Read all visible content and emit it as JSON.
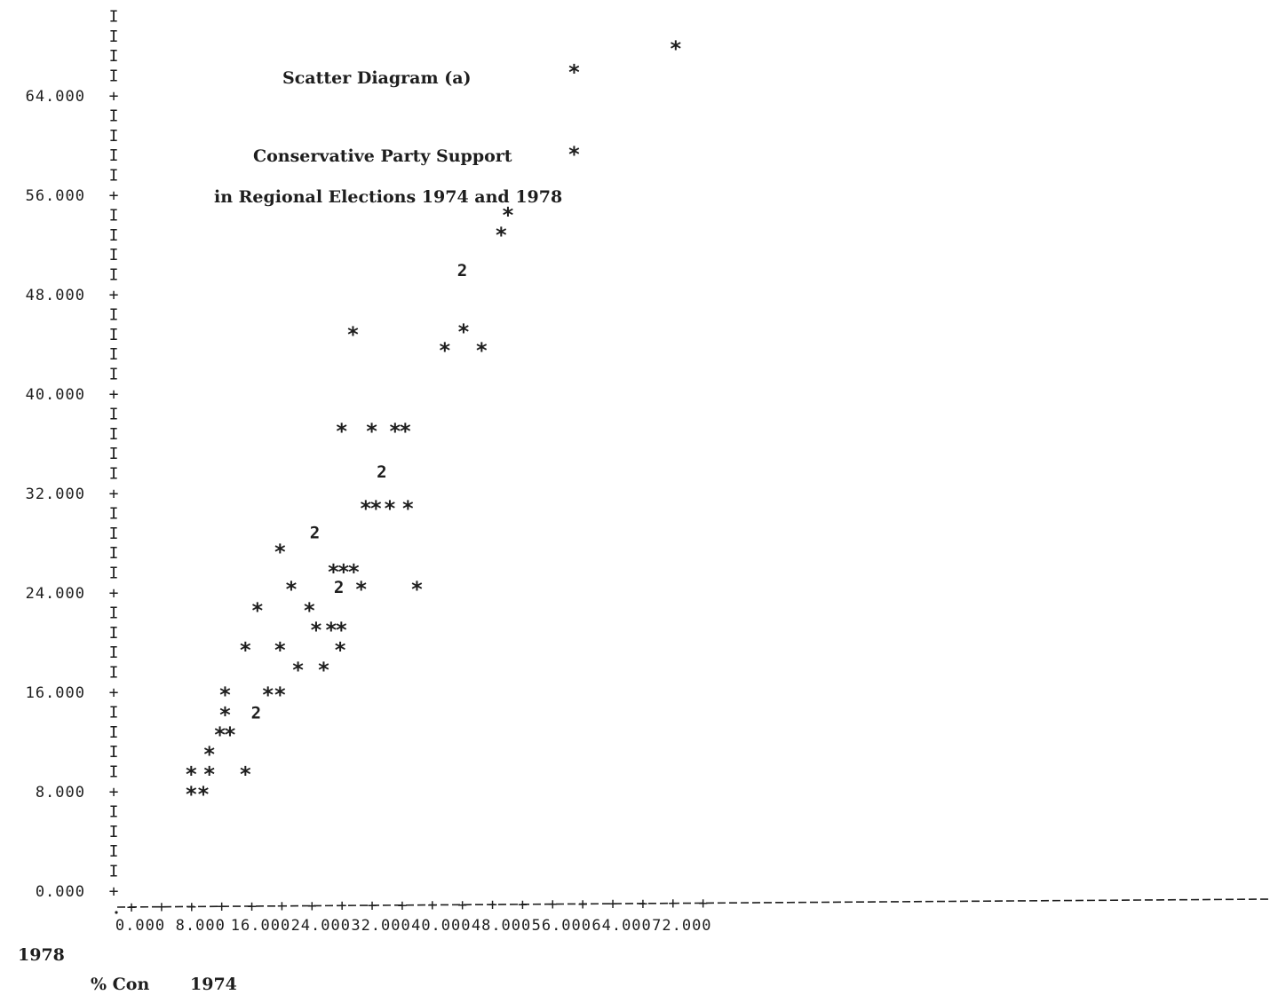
{
  "chart_data": {
    "type": "scatter",
    "title": "Scatter Diagram (a)",
    "subtitle_lines": [
      "Conservative Party Support",
      "in Regional Elections 1974 and 1978"
    ],
    "ylabel": "1978",
    "xlabel_prefix": "% Con",
    "xlabel": "1974",
    "xlim": [
      0,
      76
    ],
    "ylim": [
      0,
      68
    ],
    "x_ticks": [
      "0.000",
      "8.000",
      "16.000",
      "24.000",
      "32.000",
      "40.000",
      "48.000",
      "56.000",
      "64.000",
      "72.000"
    ],
    "y_ticks": [
      "0.000",
      "8.000",
      "16.000",
      "24.000",
      "32.000",
      "40.000",
      "48.000",
      "56.000",
      "64.000"
    ],
    "x_tick_values": [
      0,
      8,
      16,
      24,
      32,
      40,
      48,
      56,
      64,
      72
    ],
    "y_tick_values": [
      0,
      8,
      16,
      24,
      32,
      40,
      48,
      56,
      64
    ],
    "x_axis_minor_label": "+",
    "x_axis_dash": "-",
    "y_axis_minor_label": "I",
    "y_axis_major_label": "+",
    "points": [
      {
        "x": 71.5,
        "y": 68.0,
        "label": "*"
      },
      {
        "x": 58.0,
        "y": 66.1,
        "label": "*"
      },
      {
        "x": 58.0,
        "y": 59.5,
        "label": "*"
      },
      {
        "x": 49.2,
        "y": 54.6,
        "label": "*"
      },
      {
        "x": 48.3,
        "y": 53.0,
        "label": "*"
      },
      {
        "x": 43.3,
        "y": 50.0,
        "label": "2"
      },
      {
        "x": 43.3,
        "y": 45.2,
        "label": "*"
      },
      {
        "x": 40.8,
        "y": 43.7,
        "label": "*"
      },
      {
        "x": 45.7,
        "y": 43.7,
        "label": "*"
      },
      {
        "x": 28.6,
        "y": 45.0,
        "label": "*"
      },
      {
        "x": 27.1,
        "y": 37.2,
        "label": "*"
      },
      {
        "x": 31.1,
        "y": 37.2,
        "label": "*"
      },
      {
        "x": 34.2,
        "y": 37.2,
        "label": "**"
      },
      {
        "x": 32.6,
        "y": 33.8,
        "label": "2"
      },
      {
        "x": 30.3,
        "y": 31.0,
        "label": "**"
      },
      {
        "x": 33.5,
        "y": 31.0,
        "label": "*"
      },
      {
        "x": 35.9,
        "y": 31.0,
        "label": "*"
      },
      {
        "x": 23.7,
        "y": 28.9,
        "label": "2"
      },
      {
        "x": 18.9,
        "y": 27.5,
        "label": "*"
      },
      {
        "x": 26.0,
        "y": 25.9,
        "label": "***"
      },
      {
        "x": 20.4,
        "y": 24.5,
        "label": "*"
      },
      {
        "x": 26.9,
        "y": 24.5,
        "label": "2"
      },
      {
        "x": 29.7,
        "y": 24.5,
        "label": "*"
      },
      {
        "x": 37.1,
        "y": 24.5,
        "label": "*"
      },
      {
        "x": 15.9,
        "y": 22.8,
        "label": "*"
      },
      {
        "x": 22.8,
        "y": 22.8,
        "label": "*"
      },
      {
        "x": 23.7,
        "y": 21.2,
        "label": "*"
      },
      {
        "x": 25.7,
        "y": 21.2,
        "label": "**"
      },
      {
        "x": 14.3,
        "y": 19.6,
        "label": "*"
      },
      {
        "x": 18.9,
        "y": 19.6,
        "label": "*"
      },
      {
        "x": 26.9,
        "y": 19.6,
        "label": "*"
      },
      {
        "x": 21.3,
        "y": 18.0,
        "label": "*"
      },
      {
        "x": 24.7,
        "y": 18.0,
        "label": "*"
      },
      {
        "x": 11.6,
        "y": 16.0,
        "label": "*"
      },
      {
        "x": 17.3,
        "y": 16.0,
        "label": "*"
      },
      {
        "x": 18.9,
        "y": 16.0,
        "label": "*"
      },
      {
        "x": 11.6,
        "y": 14.4,
        "label": "*"
      },
      {
        "x": 15.9,
        "y": 14.4,
        "label": "2"
      },
      {
        "x": 10.9,
        "y": 12.8,
        "label": "**"
      },
      {
        "x": 9.5,
        "y": 11.2,
        "label": "*"
      },
      {
        "x": 7.1,
        "y": 9.6,
        "label": "*"
      },
      {
        "x": 9.5,
        "y": 9.6,
        "label": "*"
      },
      {
        "x": 14.3,
        "y": 9.6,
        "label": "*"
      },
      {
        "x": 7.1,
        "y": 8.0,
        "label": "*"
      },
      {
        "x": 8.7,
        "y": 8.0,
        "label": "*"
      }
    ],
    "grid": false,
    "legend": "none"
  },
  "colors": {
    "ink": "#1e1e1e",
    "background": "#ffffff"
  }
}
